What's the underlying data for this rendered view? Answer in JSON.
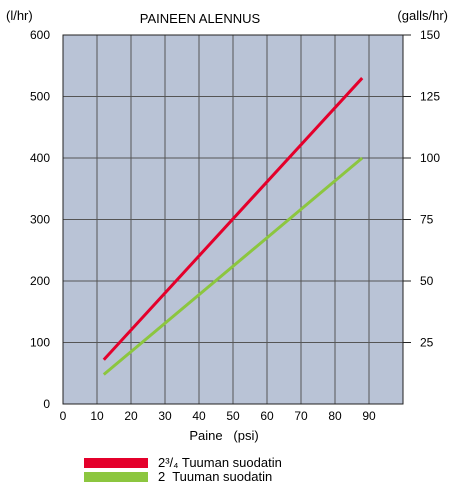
{
  "chart_data": {
    "type": "line",
    "title": "PAINEEN ALENNUS",
    "xlabel": "Paine   (psi)",
    "ylabel_left": "(l/hr)",
    "ylabel_right": "(galls/hr)",
    "xlim": [
      0,
      100
    ],
    "ylim_left": [
      0,
      600
    ],
    "ylim_right": [
      0,
      150
    ],
    "x_ticks": [
      "0",
      "10",
      "20",
      "30",
      "40",
      "50",
      "60",
      "70",
      "80",
      "90"
    ],
    "y_ticks_left": [
      "0",
      "100",
      "200",
      "300",
      "400",
      "500",
      "600"
    ],
    "y_ticks_right": [
      "25",
      "50",
      "75",
      "100",
      "125",
      "150"
    ],
    "grid": true,
    "legend_position": "bottom",
    "series": [
      {
        "name": "2³/₄ Tuuman suodatin",
        "color": "#e4002b",
        "x": [
          12,
          88
        ],
        "y": [
          72,
          530
        ]
      },
      {
        "name": "2  Tuuman suodatin",
        "color": "#8cc63f",
        "x": [
          12,
          88
        ],
        "y": [
          48,
          400
        ]
      }
    ]
  },
  "colors": {
    "plot_background": "#b9c3d6",
    "grid": "#555555"
  }
}
